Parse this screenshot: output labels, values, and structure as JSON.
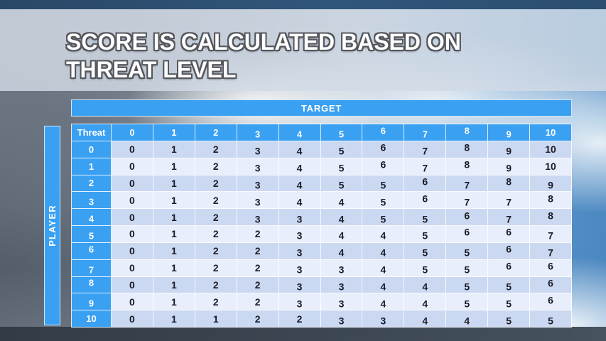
{
  "slide": {
    "title_line1": "SCORE IS CALCULATED BASED ON",
    "title_line2": "THREAT LEVEL"
  },
  "table": {
    "target_label": "TARGET",
    "player_label": "PLAYER",
    "corner_label": "Threat",
    "column_headers": [
      "0",
      "1",
      "2",
      "3",
      "4",
      "5",
      "6",
      "7",
      "8",
      "9",
      "10"
    ],
    "row_headers": [
      "0",
      "1",
      "2",
      "3",
      "4",
      "5",
      "6",
      "7",
      "8",
      "9",
      "10"
    ],
    "matrix": [
      [
        0,
        1,
        2,
        3,
        4,
        5,
        6,
        7,
        8,
        9,
        10
      ],
      [
        0,
        1,
        2,
        3,
        4,
        5,
        6,
        7,
        8,
        9,
        10
      ],
      [
        0,
        1,
        2,
        3,
        4,
        5,
        5,
        6,
        7,
        8,
        9
      ],
      [
        0,
        1,
        2,
        3,
        4,
        4,
        5,
        6,
        7,
        7,
        8
      ],
      [
        0,
        1,
        2,
        3,
        3,
        4,
        5,
        5,
        6,
        7,
        8
      ],
      [
        0,
        1,
        2,
        2,
        3,
        4,
        4,
        5,
        6,
        6,
        7
      ],
      [
        0,
        1,
        2,
        2,
        3,
        4,
        4,
        5,
        5,
        6,
        7
      ],
      [
        0,
        1,
        2,
        2,
        3,
        3,
        4,
        5,
        5,
        6,
        6
      ],
      [
        0,
        1,
        2,
        2,
        3,
        3,
        4,
        4,
        5,
        5,
        6
      ],
      [
        0,
        1,
        2,
        2,
        3,
        3,
        4,
        4,
        5,
        5,
        6
      ],
      [
        0,
        1,
        1,
        2,
        2,
        3,
        3,
        4,
        4,
        5,
        5
      ]
    ]
  },
  "colors": {
    "accent_blue": "#3AA0F2",
    "row_dark": "#CBD8F2",
    "row_light": "#E8EEFB",
    "cell_text": "#1A1B26",
    "top_band": "#2D4B6B",
    "bottom_band": "#3A4450"
  },
  "chart_data": {
    "type": "table",
    "title": "SCORE IS CALCULATED BASED ON THREAT LEVEL",
    "x_axis_group_label": "TARGET",
    "y_axis_group_label": "PLAYER",
    "corner_header": "Threat",
    "columns": [
      "0",
      "1",
      "2",
      "3",
      "4",
      "5",
      "6",
      "7",
      "8",
      "9",
      "10"
    ],
    "rows": [
      "0",
      "1",
      "2",
      "3",
      "4",
      "5",
      "6",
      "7",
      "8",
      "9",
      "10"
    ],
    "values": [
      [
        0,
        1,
        2,
        3,
        4,
        5,
        6,
        7,
        8,
        9,
        10
      ],
      [
        0,
        1,
        2,
        3,
        4,
        5,
        6,
        7,
        8,
        9,
        10
      ],
      [
        0,
        1,
        2,
        3,
        4,
        5,
        5,
        6,
        7,
        8,
        9
      ],
      [
        0,
        1,
        2,
        3,
        4,
        4,
        5,
        6,
        7,
        7,
        8
      ],
      [
        0,
        1,
        2,
        3,
        3,
        4,
        5,
        5,
        6,
        7,
        8
      ],
      [
        0,
        1,
        2,
        2,
        3,
        4,
        4,
        5,
        6,
        6,
        7
      ],
      [
        0,
        1,
        2,
        2,
        3,
        4,
        4,
        5,
        5,
        6,
        7
      ],
      [
        0,
        1,
        2,
        2,
        3,
        3,
        4,
        5,
        5,
        6,
        6
      ],
      [
        0,
        1,
        2,
        2,
        3,
        3,
        4,
        4,
        5,
        5,
        6
      ],
      [
        0,
        1,
        2,
        2,
        3,
        3,
        4,
        4,
        5,
        5,
        6
      ],
      [
        0,
        1,
        1,
        2,
        2,
        3,
        3,
        4,
        4,
        5,
        5
      ]
    ]
  }
}
